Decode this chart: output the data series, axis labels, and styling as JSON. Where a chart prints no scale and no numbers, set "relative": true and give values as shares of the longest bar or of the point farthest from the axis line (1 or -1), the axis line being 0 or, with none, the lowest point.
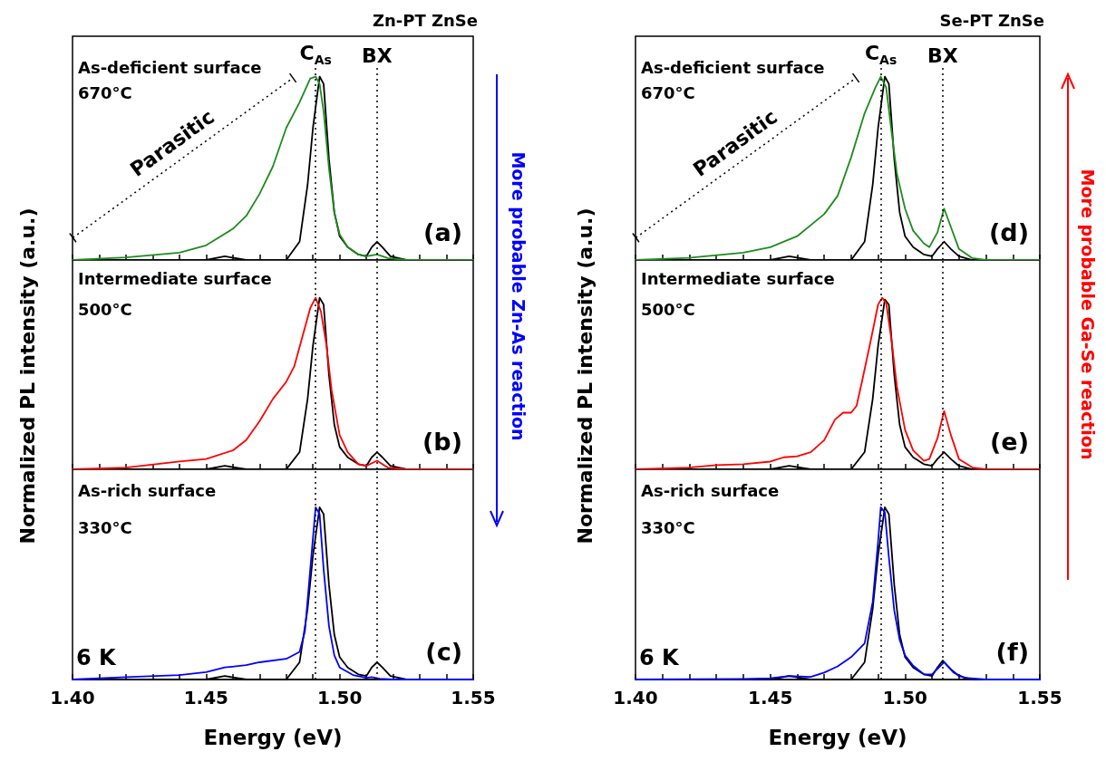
{
  "chart_data": [
    {
      "type": "line",
      "relative": true,
      "title": "Zn-PT ZnSe",
      "tick_labels": false,
      "xlim": [
        1.4,
        1.55
      ],
      "xticks": [
        {
          "value": 1.4,
          "label": null
        },
        {
          "value": 1.41,
          "label": null
        },
        {
          "value": 1.42,
          "label": null
        },
        {
          "value": 1.43,
          "label": null
        },
        {
          "value": 1.44,
          "label": null
        },
        {
          "value": 1.45,
          "label": null
        },
        {
          "value": 1.46,
          "label": null
        },
        {
          "value": 1.47,
          "label": null
        },
        {
          "value": 1.48,
          "label": null
        },
        {
          "value": 1.49,
          "label": null
        },
        {
          "value": 1.5,
          "label": null
        },
        {
          "value": 1.51,
          "label": null
        },
        {
          "value": 1.52,
          "label": null
        },
        {
          "value": 1.53,
          "label": null
        },
        {
          "value": 1.54,
          "label": null
        },
        {
          "value": 1.55,
          "label": null
        }
      ],
      "series": [
        {
          "color": "#000000",
          "x": [
            1.4,
            1.45,
            1.457,
            1.465,
            1.48,
            1.485,
            1.488,
            1.49,
            1.4925,
            1.494,
            1.496,
            1.498,
            1.5,
            1.503,
            1.507,
            1.51,
            1.512,
            1.514,
            1.516,
            1.519,
            1.525,
            1.55
          ],
          "values": [
            0,
            0,
            0.02,
            0,
            0,
            0.1,
            0.41,
            0.72,
            1.0,
            0.96,
            0.55,
            0.26,
            0.13,
            0.07,
            0.03,
            0.02,
            0.07,
            0.1,
            0.07,
            0.02,
            0,
            0
          ]
        },
        {
          "color": "#1e8c1e",
          "x": [
            1.4,
            1.42,
            1.44,
            1.45,
            1.46,
            1.465,
            1.47,
            1.475,
            1.48,
            1.485,
            1.489,
            1.491,
            1.4925,
            1.494,
            1.496,
            1.498,
            1.5,
            1.503,
            1.507,
            1.51,
            1.514,
            1.518,
            1.525,
            1.55
          ],
          "values": [
            0,
            0.014,
            0.04,
            0.08,
            0.17,
            0.24,
            0.36,
            0.51,
            0.72,
            0.86,
            0.99,
            1.0,
            0.96,
            0.81,
            0.5,
            0.26,
            0.14,
            0.07,
            0.03,
            0.02,
            0.03,
            0.01,
            0,
            0
          ]
        }
      ],
      "ref_lines": [
        {
          "axis": "x",
          "value": 1.491,
          "label": "C$_{As}$",
          "color": "#000000",
          "line_style": "dotted"
        },
        {
          "axis": "x",
          "value": 1.514,
          "label": "BX",
          "color": "#000000",
          "line_style": "dotted"
        }
      ],
      "annotations": [
        "As-deficient surface",
        "670°C",
        "(a)",
        "Parasitic"
      ]
    },
    {
      "type": "line",
      "relative": true,
      "ylabel": "Normalized PL intensity (a.u.)",
      "tick_labels": false,
      "xlim": [
        1.4,
        1.55
      ],
      "xticks": [
        {
          "value": 1.4,
          "label": null
        },
        {
          "value": 1.41,
          "label": null
        },
        {
          "value": 1.42,
          "label": null
        },
        {
          "value": 1.43,
          "label": null
        },
        {
          "value": 1.44,
          "label": null
        },
        {
          "value": 1.45,
          "label": null
        },
        {
          "value": 1.46,
          "label": null
        },
        {
          "value": 1.47,
          "label": null
        },
        {
          "value": 1.48,
          "label": null
        },
        {
          "value": 1.49,
          "label": null
        },
        {
          "value": 1.5,
          "label": null
        },
        {
          "value": 1.51,
          "label": null
        },
        {
          "value": 1.52,
          "label": null
        },
        {
          "value": 1.53,
          "label": null
        },
        {
          "value": 1.54,
          "label": null
        },
        {
          "value": 1.55,
          "label": null
        }
      ],
      "series": [
        {
          "color": "#000000",
          "x": [
            1.4,
            1.45,
            1.457,
            1.465,
            1.48,
            1.485,
            1.488,
            1.49,
            1.4925,
            1.494,
            1.496,
            1.498,
            1.5,
            1.503,
            1.507,
            1.51,
            1.512,
            1.514,
            1.516,
            1.519,
            1.525,
            1.55
          ],
          "values": [
            0,
            0,
            0.02,
            0,
            0,
            0.1,
            0.41,
            0.72,
            1.0,
            0.96,
            0.55,
            0.26,
            0.13,
            0.07,
            0.03,
            0.02,
            0.07,
            0.1,
            0.07,
            0.02,
            0,
            0
          ]
        },
        {
          "color": "#ff0000",
          "x": [
            1.4,
            1.42,
            1.44,
            1.45,
            1.46,
            1.465,
            1.47,
            1.475,
            1.48,
            1.483,
            1.486,
            1.489,
            1.491,
            1.493,
            1.495,
            1.497,
            1.5,
            1.503,
            1.507,
            1.51,
            1.514,
            1.518,
            1.525,
            1.55
          ],
          "values": [
            0,
            0.01,
            0.045,
            0.06,
            0.11,
            0.17,
            0.28,
            0.41,
            0.51,
            0.6,
            0.77,
            0.94,
            1.0,
            0.92,
            0.73,
            0.46,
            0.2,
            0.1,
            0.03,
            0.02,
            0.05,
            0.01,
            0,
            0
          ]
        }
      ],
      "ref_lines": [
        {
          "axis": "x",
          "value": 1.491,
          "color": "#000000",
          "line_style": "dotted"
        },
        {
          "axis": "x",
          "value": 1.514,
          "color": "#000000",
          "line_style": "dotted"
        }
      ],
      "annotations": [
        "Intermediate surface",
        "500°C",
        "(b)",
        "More probable Zn-As reaction"
      ]
    },
    {
      "type": "line",
      "relative": true,
      "xlabel": "Energy (eV)",
      "tick_labels": "x",
      "xlim": [
        1.4,
        1.55
      ],
      "xticks": [
        {
          "value": 1.4,
          "label": "1.40"
        },
        {
          "value": 1.41,
          "label": null
        },
        {
          "value": 1.42,
          "label": null
        },
        {
          "value": 1.43,
          "label": null
        },
        {
          "value": 1.44,
          "label": null
        },
        {
          "value": 1.45,
          "label": "1.45"
        },
        {
          "value": 1.46,
          "label": null
        },
        {
          "value": 1.47,
          "label": null
        },
        {
          "value": 1.48,
          "label": null
        },
        {
          "value": 1.49,
          "label": null
        },
        {
          "value": 1.5,
          "label": "1.50"
        },
        {
          "value": 1.51,
          "label": null
        },
        {
          "value": 1.52,
          "label": null
        },
        {
          "value": 1.53,
          "label": null
        },
        {
          "value": 1.54,
          "label": null
        },
        {
          "value": 1.55,
          "label": "1.55"
        }
      ],
      "series": [
        {
          "color": "#000000",
          "x": [
            1.4,
            1.45,
            1.457,
            1.465,
            1.48,
            1.485,
            1.488,
            1.49,
            1.4925,
            1.494,
            1.496,
            1.498,
            1.5,
            1.503,
            1.507,
            1.51,
            1.512,
            1.514,
            1.516,
            1.519,
            1.525,
            1.55
          ],
          "values": [
            0,
            0,
            0.02,
            0,
            0,
            0.1,
            0.41,
            0.72,
            1.0,
            0.96,
            0.55,
            0.26,
            0.13,
            0.07,
            0.03,
            0.02,
            0.07,
            0.1,
            0.07,
            0.02,
            0,
            0
          ]
        },
        {
          "color": "#0000ff",
          "x": [
            1.4,
            1.42,
            1.44,
            1.45,
            1.457,
            1.465,
            1.47,
            1.48,
            1.485,
            1.487,
            1.489,
            1.491,
            1.4925,
            1.494,
            1.496,
            1.498,
            1.5,
            1.505,
            1.51,
            1.512,
            1.515,
            1.52,
            1.55
          ],
          "values": [
            0,
            0.014,
            0.026,
            0.043,
            0.07,
            0.083,
            0.1,
            0.12,
            0.16,
            0.28,
            0.64,
            1.0,
            0.96,
            0.64,
            0.31,
            0.14,
            0.07,
            0.026,
            0.01,
            0.014,
            0.004,
            0,
            0
          ]
        }
      ],
      "ref_lines": [
        {
          "axis": "x",
          "value": 1.491,
          "color": "#000000",
          "line_style": "dotted"
        },
        {
          "axis": "x",
          "value": 1.514,
          "color": "#000000",
          "line_style": "dotted"
        }
      ],
      "annotations": [
        "As-rich surface",
        "330°C",
        "(c)",
        "6 K"
      ]
    },
    {
      "type": "line",
      "relative": true,
      "title": "Se-PT ZnSe",
      "tick_labels": false,
      "xlim": [
        1.4,
        1.55
      ],
      "xticks": [
        {
          "value": 1.4,
          "label": null
        },
        {
          "value": 1.41,
          "label": null
        },
        {
          "value": 1.42,
          "label": null
        },
        {
          "value": 1.43,
          "label": null
        },
        {
          "value": 1.44,
          "label": null
        },
        {
          "value": 1.45,
          "label": null
        },
        {
          "value": 1.46,
          "label": null
        },
        {
          "value": 1.47,
          "label": null
        },
        {
          "value": 1.48,
          "label": null
        },
        {
          "value": 1.49,
          "label": null
        },
        {
          "value": 1.5,
          "label": null
        },
        {
          "value": 1.51,
          "label": null
        },
        {
          "value": 1.52,
          "label": null
        },
        {
          "value": 1.53,
          "label": null
        },
        {
          "value": 1.54,
          "label": null
        },
        {
          "value": 1.55,
          "label": null
        }
      ],
      "series": [
        {
          "color": "#000000",
          "x": [
            1.4,
            1.45,
            1.457,
            1.465,
            1.48,
            1.485,
            1.488,
            1.49,
            1.4925,
            1.494,
            1.496,
            1.498,
            1.5,
            1.503,
            1.507,
            1.51,
            1.512,
            1.5145,
            1.517,
            1.52,
            1.525,
            1.55
          ],
          "values": [
            0,
            0,
            0.02,
            0,
            0,
            0.1,
            0.41,
            0.72,
            1.0,
            0.96,
            0.55,
            0.26,
            0.13,
            0.07,
            0.03,
            0.02,
            0.06,
            0.1,
            0.06,
            0.02,
            0,
            0
          ]
        },
        {
          "color": "#1e8c1e",
          "x": [
            1.4,
            1.42,
            1.44,
            1.45,
            1.46,
            1.47,
            1.475,
            1.48,
            1.485,
            1.489,
            1.491,
            1.493,
            1.495,
            1.497,
            1.5,
            1.503,
            1.507,
            1.509,
            1.512,
            1.5145,
            1.517,
            1.52,
            1.525,
            1.53,
            1.55
          ],
          "values": [
            0,
            0.012,
            0.04,
            0.07,
            0.13,
            0.25,
            0.35,
            0.56,
            0.8,
            0.94,
            1.0,
            0.94,
            0.7,
            0.47,
            0.28,
            0.16,
            0.09,
            0.07,
            0.15,
            0.28,
            0.18,
            0.06,
            0.01,
            0,
            0
          ]
        }
      ],
      "ref_lines": [
        {
          "axis": "x",
          "value": 1.491,
          "label": "C$_{As}$",
          "color": "#000000",
          "line_style": "dotted"
        },
        {
          "axis": "x",
          "value": 1.514,
          "label": "BX",
          "color": "#000000",
          "line_style": "dotted"
        }
      ],
      "annotations": [
        "As-deficient surface",
        "670°C",
        "(d)",
        "Parasitic"
      ]
    },
    {
      "type": "line",
      "relative": true,
      "ylabel": "Normalized PL intensity (a.u.)",
      "tick_labels": false,
      "xlim": [
        1.4,
        1.55
      ],
      "xticks": [
        {
          "value": 1.4,
          "label": null
        },
        {
          "value": 1.41,
          "label": null
        },
        {
          "value": 1.42,
          "label": null
        },
        {
          "value": 1.43,
          "label": null
        },
        {
          "value": 1.44,
          "label": null
        },
        {
          "value": 1.45,
          "label": null
        },
        {
          "value": 1.46,
          "label": null
        },
        {
          "value": 1.47,
          "label": null
        },
        {
          "value": 1.48,
          "label": null
        },
        {
          "value": 1.49,
          "label": null
        },
        {
          "value": 1.5,
          "label": null
        },
        {
          "value": 1.51,
          "label": null
        },
        {
          "value": 1.52,
          "label": null
        },
        {
          "value": 1.53,
          "label": null
        },
        {
          "value": 1.54,
          "label": null
        },
        {
          "value": 1.55,
          "label": null
        }
      ],
      "series": [
        {
          "color": "#000000",
          "x": [
            1.4,
            1.45,
            1.457,
            1.465,
            1.48,
            1.485,
            1.488,
            1.49,
            1.4925,
            1.494,
            1.496,
            1.498,
            1.5,
            1.503,
            1.507,
            1.51,
            1.512,
            1.5145,
            1.517,
            1.52,
            1.525,
            1.55
          ],
          "values": [
            0,
            0,
            0.02,
            0,
            0,
            0.1,
            0.41,
            0.72,
            0.99,
            0.96,
            0.55,
            0.26,
            0.13,
            0.07,
            0.03,
            0.02,
            0.06,
            0.1,
            0.06,
            0.02,
            0,
            0
          ]
        },
        {
          "color": "#ff0000",
          "x": [
            1.4,
            1.42,
            1.43,
            1.44,
            1.45,
            1.455,
            1.46,
            1.465,
            1.47,
            1.474,
            1.477,
            1.48,
            1.482,
            1.484,
            1.487,
            1.49,
            1.4915,
            1.493,
            1.495,
            1.497,
            1.5,
            1.503,
            1.507,
            1.509,
            1.512,
            1.5145,
            1.517,
            1.52,
            1.525,
            1.53,
            1.55
          ],
          "values": [
            0,
            0.01,
            0.024,
            0.03,
            0.045,
            0.07,
            0.076,
            0.1,
            0.17,
            0.29,
            0.33,
            0.33,
            0.37,
            0.51,
            0.73,
            0.96,
            1.0,
            0.97,
            0.75,
            0.48,
            0.23,
            0.11,
            0.05,
            0.06,
            0.18,
            0.34,
            0.2,
            0.06,
            0.01,
            0,
            0
          ]
        }
      ],
      "ref_lines": [
        {
          "axis": "x",
          "value": 1.491,
          "color": "#000000",
          "line_style": "dotted"
        },
        {
          "axis": "x",
          "value": 1.514,
          "color": "#000000",
          "line_style": "dotted"
        }
      ],
      "annotations": [
        "Intermediate surface",
        "500°C",
        "(e)",
        "More probable Ga-Se reaction"
      ]
    },
    {
      "type": "line",
      "relative": true,
      "xlabel": "Energy (eV)",
      "tick_labels": "x",
      "xlim": [
        1.4,
        1.55
      ],
      "xticks": [
        {
          "value": 1.4,
          "label": "1.40"
        },
        {
          "value": 1.41,
          "label": null
        },
        {
          "value": 1.42,
          "label": null
        },
        {
          "value": 1.43,
          "label": null
        },
        {
          "value": 1.44,
          "label": null
        },
        {
          "value": 1.45,
          "label": "1.45"
        },
        {
          "value": 1.46,
          "label": null
        },
        {
          "value": 1.47,
          "label": null
        },
        {
          "value": 1.48,
          "label": null
        },
        {
          "value": 1.49,
          "label": null
        },
        {
          "value": 1.5,
          "label": "1.50"
        },
        {
          "value": 1.51,
          "label": null
        },
        {
          "value": 1.52,
          "label": null
        },
        {
          "value": 1.53,
          "label": null
        },
        {
          "value": 1.54,
          "label": null
        },
        {
          "value": 1.55,
          "label": "1.55"
        }
      ],
      "series": [
        {
          "color": "#000000",
          "x": [
            1.4,
            1.45,
            1.457,
            1.465,
            1.48,
            1.485,
            1.488,
            1.49,
            1.4925,
            1.494,
            1.496,
            1.498,
            1.5,
            1.503,
            1.507,
            1.51,
            1.512,
            1.514,
            1.517,
            1.52,
            1.525,
            1.55
          ],
          "values": [
            0,
            0,
            0.02,
            0,
            0,
            0.1,
            0.41,
            0.72,
            1.0,
            0.96,
            0.55,
            0.26,
            0.13,
            0.07,
            0.03,
            0.02,
            0.07,
            0.11,
            0.06,
            0.02,
            0,
            0
          ]
        },
        {
          "color": "#0000ff",
          "x": [
            1.4,
            1.44,
            1.45,
            1.457,
            1.465,
            1.47,
            1.475,
            1.48,
            1.485,
            1.488,
            1.49,
            1.491,
            1.4925,
            1.494,
            1.496,
            1.498,
            1.5,
            1.503,
            1.507,
            1.51,
            1.5145,
            1.518,
            1.522,
            1.53,
            1.55
          ],
          "values": [
            0,
            0.003,
            0.007,
            0.02,
            0.015,
            0.04,
            0.076,
            0.13,
            0.21,
            0.45,
            0.8,
            1.0,
            0.97,
            0.71,
            0.4,
            0.23,
            0.14,
            0.08,
            0.03,
            0.03,
            0.1,
            0.04,
            0.01,
            0,
            0
          ]
        }
      ],
      "ref_lines": [
        {
          "axis": "x",
          "value": 1.491,
          "color": "#000000",
          "line_style": "dotted"
        },
        {
          "axis": "x",
          "value": 1.514,
          "color": "#000000",
          "line_style": "dotted"
        }
      ],
      "annotations": [
        "As-rich surface",
        "330°C",
        "(f)",
        "6 K"
      ]
    }
  ]
}
